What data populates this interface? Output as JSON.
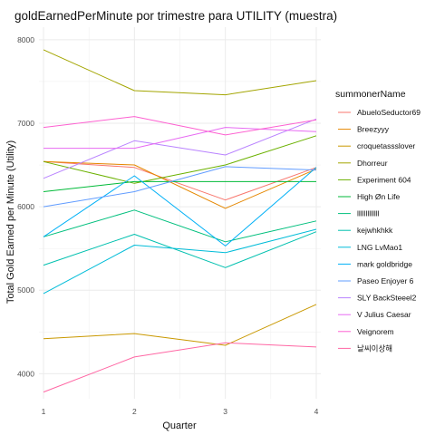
{
  "chart_data": {
    "type": "line",
    "title": "goldEarnedPerMinute por trimestre para UTILITY (muestra)",
    "xlabel": "Quarter",
    "ylabel": "Total Gold Earned per Minute (Utility)",
    "x": [
      1,
      2,
      3,
      4
    ],
    "x_ticks": [
      "1",
      "2",
      "3",
      "4"
    ],
    "y_ticks": [
      4000,
      5000,
      6000,
      7000,
      8000
    ],
    "y_tick_labels": [
      "4000",
      "5000",
      "6000",
      "7000",
      "8000"
    ],
    "xlim": [
      0.95,
      4.05
    ],
    "ylim": [
      3700,
      8150
    ],
    "grid": true,
    "legend_title": "summonerName",
    "legend_position": "right",
    "series": [
      {
        "name": "AbueloSeductor69",
        "color": "#F8766D",
        "values": [
          6540,
          6470,
          6080,
          6470
        ]
      },
      {
        "name": "Breezyyy",
        "color": "#E58700",
        "values": [
          6540,
          6500,
          5980,
          6450
        ]
      },
      {
        "name": "croquetassslover",
        "color": "#C99800",
        "values": [
          4420,
          4480,
          4340,
          4830
        ]
      },
      {
        "name": "Dhorreur",
        "color": "#A3A500",
        "values": [
          7880,
          7390,
          7340,
          7510
        ]
      },
      {
        "name": "Experiment 604",
        "color": "#6BB100",
        "values": [
          6540,
          6280,
          6500,
          6850
        ]
      },
      {
        "name": "High Øn Life",
        "color": "#00BA38",
        "values": [
          6180,
          6300,
          6300,
          6300
        ]
      },
      {
        "name": "lllllllllllll",
        "color": "#00BF7D",
        "values": [
          5640,
          5960,
          5580,
          5830
        ]
      },
      {
        "name": "kejwhkhkk",
        "color": "#00C0AF",
        "values": [
          5300,
          5670,
          5270,
          5700
        ]
      },
      {
        "name": "LNG LvMao1",
        "color": "#00BCD8",
        "values": [
          4960,
          5540,
          5450,
          5730
        ]
      },
      {
        "name": "mark goldbridge",
        "color": "#00B0F6",
        "values": [
          5640,
          6370,
          5530,
          6470
        ]
      },
      {
        "name": "Paseo Enjoyer 6",
        "color": "#619CFF",
        "values": [
          6000,
          6180,
          6480,
          6440
        ]
      },
      {
        "name": "SLY BackSteeel2",
        "color": "#B983FF",
        "values": [
          6340,
          6790,
          6620,
          7050
        ]
      },
      {
        "name": "V Julius Caesar",
        "color": "#E76BF3",
        "values": [
          6700,
          6700,
          6950,
          6900
        ]
      },
      {
        "name": "Veignorem",
        "color": "#FD61D1",
        "values": [
          6950,
          7080,
          6860,
          7040
        ]
      },
      {
        "name": "날씨이상해",
        "color": "#FF67A4",
        "values": [
          3780,
          4200,
          4370,
          4320
        ]
      }
    ]
  }
}
